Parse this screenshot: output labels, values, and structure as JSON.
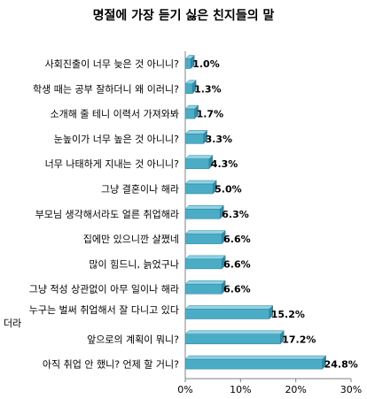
{
  "chart_data": {
    "type": "bar",
    "orientation": "horizontal",
    "title": "명절에 가장 듣기 싫은 친지들의 말",
    "categories": [
      "사회진출이 너무 늦은 것 아니니?",
      "학생 때는 공부 잘하더니 왜 이러니?",
      "소개해 줄 테니 이력서 가져와봐",
      "눈높이가 너무 높은 것 아니니?",
      "너무 나태하게 지내는 것 아니니?",
      "그냥 결혼이나 해라",
      "부모님 생각해서라도 얼른 취업해라",
      "집에만 있으니깐 살쪘네",
      "많이 힘드니, 늙었구나",
      "그냥 적성 상관없이 아무 일이나 해라",
      "누구는 벌써 취업해서 잘 다니고 있다\n더라",
      "앞으로의 계획이 뭐니?",
      "아직 취업 안 했니? 언제 할 거니?"
    ],
    "values": [
      1.0,
      1.3,
      1.7,
      3.3,
      4.3,
      5.0,
      6.3,
      6.6,
      6.6,
      6.6,
      15.2,
      17.2,
      24.8
    ],
    "value_labels": [
      "1.0%",
      "1.3%",
      "1.7%",
      "3.3%",
      "4.3%",
      "5.0%",
      "6.3%",
      "6.6%",
      "6.6%",
      "6.6%",
      "15.2%",
      "17.2%",
      "24.8%"
    ],
    "xlim": [
      0,
      30
    ],
    "xticks": [
      0,
      10,
      20,
      30
    ],
    "xtick_labels": [
      "0%",
      "10%",
      "20%",
      "30%"
    ],
    "bar_color": "#4bacc6",
    "bar_edge_color": "#2e7f96",
    "grid": false,
    "legend": "none"
  }
}
